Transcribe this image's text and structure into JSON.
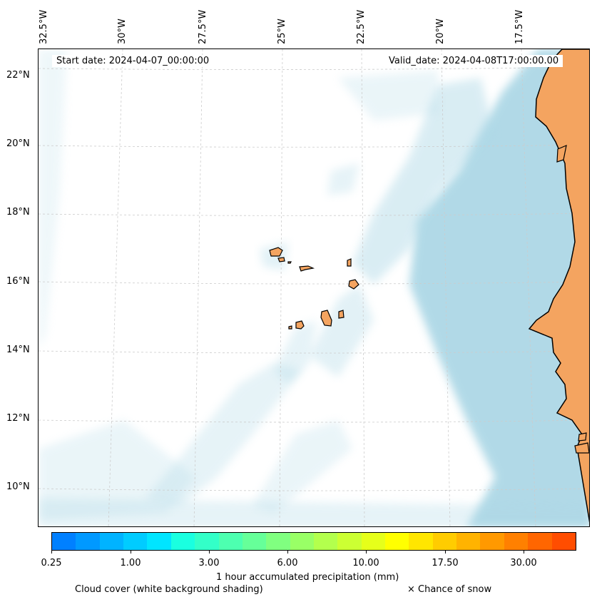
{
  "map": {
    "start_date_label": "Start date: 2024-04-07_00:00:00",
    "valid_date_label": "Valid_date: 2024-04-08T17:00:00.00",
    "lon_labels": [
      "32.5°W",
      "30°W",
      "27.5°W",
      "25°W",
      "22.5°W",
      "20°W",
      "17.5°W"
    ],
    "lat_labels": [
      "22°N",
      "20°N",
      "18°N",
      "16°N",
      "14°N",
      "12°N",
      "10°N"
    ],
    "colors": {
      "land": "#f4a460",
      "cloud": "#add8e6",
      "grid": "#cccccc",
      "coast": "#000000"
    }
  },
  "colorbar": {
    "tick_labels": [
      "0.25",
      "1.00",
      "3.00",
      "6.00",
      "10.00",
      "17.50",
      "30.00"
    ],
    "colors": [
      "#0080ff",
      "#0099ff",
      "#00b3ff",
      "#00ccff",
      "#00e5ff",
      "#1affe0",
      "#33ffc8",
      "#4dffb0",
      "#66ff99",
      "#80ff80",
      "#99ff66",
      "#b3ff4d",
      "#ccff33",
      "#e6ff1a",
      "#ffff00",
      "#ffe600",
      "#ffcc00",
      "#ffb300",
      "#ff9900",
      "#ff8000",
      "#ff6600",
      "#ff4d00"
    ],
    "label": "1 hour accumulated precipitation (mm)"
  },
  "legend": {
    "cloud_cover": "Cloud cover (white background shading)",
    "snow": "× Chance of snow"
  }
}
